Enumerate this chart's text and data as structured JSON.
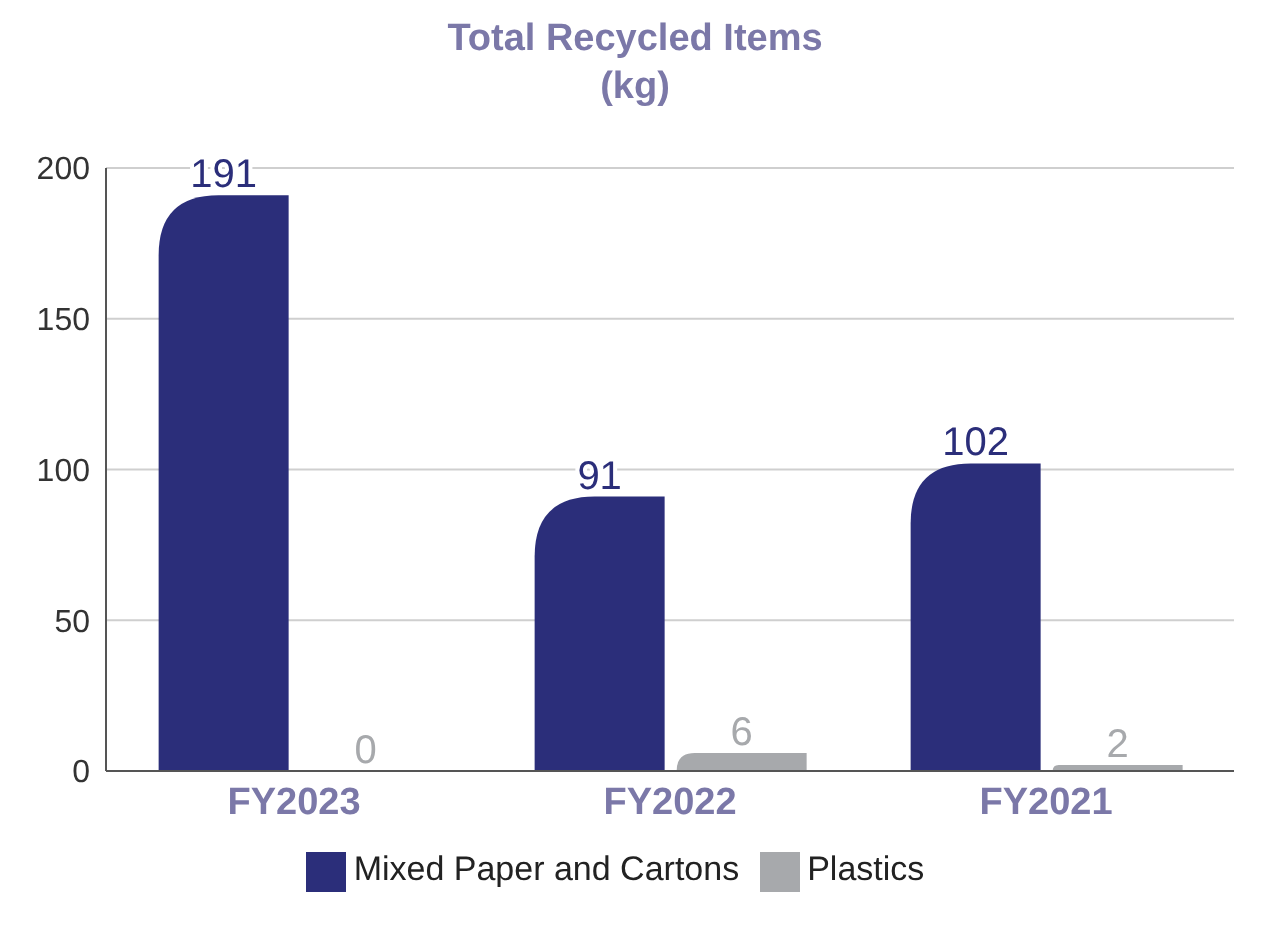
{
  "chart_data": {
    "type": "bar",
    "title": "Total Recycled Items\n(kg)",
    "categories": [
      "FY2023",
      "FY2022",
      "FY2021"
    ],
    "series": [
      {
        "name": "Mixed Paper and Cartons",
        "color": "#2b2e7a",
        "values": [
          191,
          91,
          102
        ]
      },
      {
        "name": "Plastics",
        "color": "#a7a9ac",
        "values": [
          0,
          6,
          2
        ]
      }
    ],
    "ylim": [
      0,
      200
    ],
    "yticks": [
      0,
      50,
      100,
      150,
      200
    ],
    "grid": "y",
    "legend": "bottom",
    "data_labels": true
  }
}
